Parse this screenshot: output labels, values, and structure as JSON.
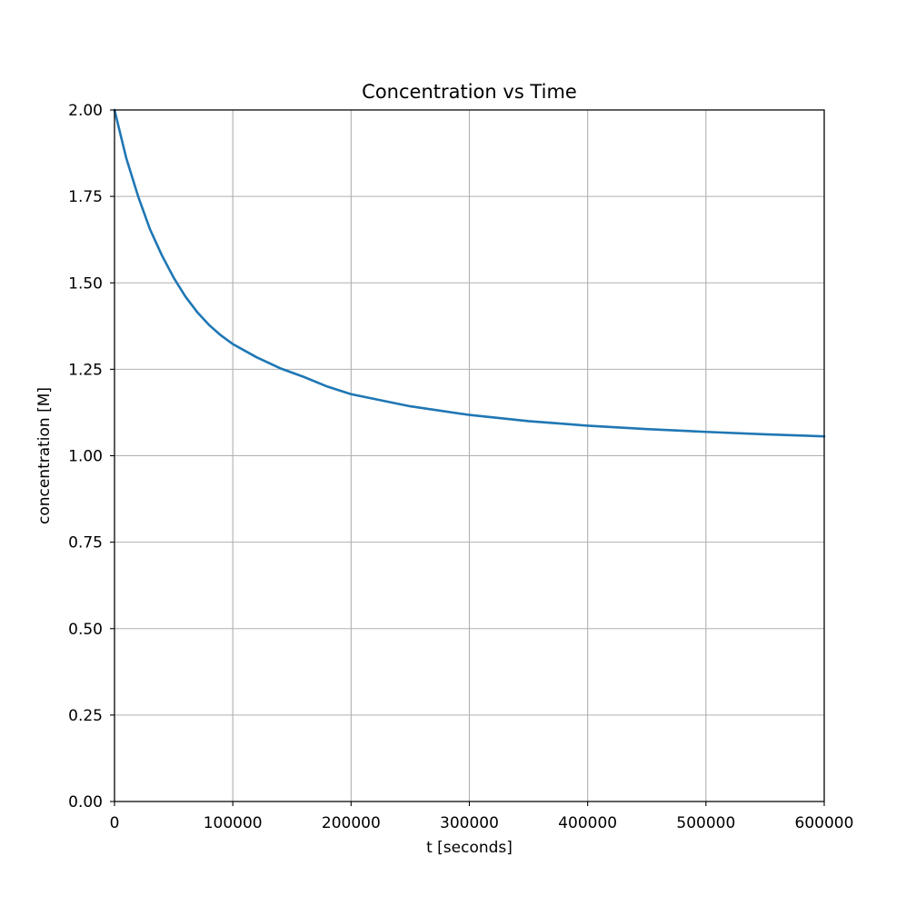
{
  "chart_data": {
    "type": "line",
    "title": "Concentration vs Time",
    "xlabel": "t [seconds]",
    "ylabel": "concentration [M]",
    "xlim": [
      0,
      600000
    ],
    "ylim": [
      0.0,
      2.0
    ],
    "xticks": [
      0,
      100000,
      200000,
      300000,
      400000,
      500000,
      600000
    ],
    "xtick_labels": [
      "0",
      "100000",
      "200000",
      "300000",
      "400000",
      "500000",
      "600000"
    ],
    "yticks": [
      0.0,
      0.25,
      0.5,
      0.75,
      1.0,
      1.25,
      1.5,
      1.75,
      2.0
    ],
    "ytick_labels": [
      "0.00",
      "0.25",
      "0.50",
      "0.75",
      "1.00",
      "1.25",
      "1.50",
      "1.75",
      "2.00"
    ],
    "grid": true,
    "legend": "none",
    "series": [
      {
        "color": "#1f77b4",
        "x": [
          0,
          10000,
          20000,
          30000,
          40000,
          50000,
          60000,
          70000,
          80000,
          90000,
          100000,
          120000,
          140000,
          160000,
          180000,
          200000,
          250000,
          300000,
          350000,
          400000,
          450000,
          500000,
          550000,
          600000
        ],
        "y": [
          2.0,
          1.86,
          1.75,
          1.655,
          1.58,
          1.515,
          1.46,
          1.415,
          1.378,
          1.348,
          1.323,
          1.285,
          1.253,
          1.228,
          1.2,
          1.178,
          1.143,
          1.118,
          1.1,
          1.087,
          1.077,
          1.069,
          1.062,
          1.056
        ]
      }
    ]
  }
}
